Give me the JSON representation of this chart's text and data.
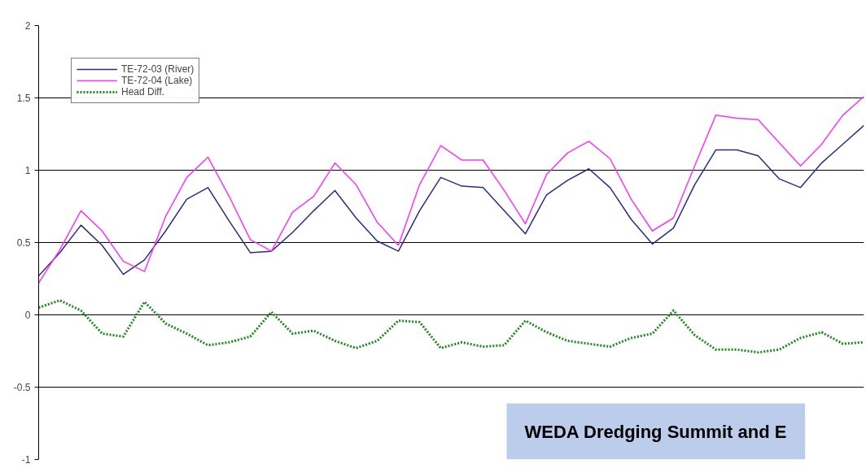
{
  "chart_data": {
    "type": "line",
    "categories": [
      null,
      null,
      null,
      null,
      null,
      null,
      null,
      null,
      null,
      null,
      null,
      null,
      null,
      null,
      null,
      null,
      null,
      null,
      null,
      null,
      null,
      null,
      null,
      null,
      null,
      null,
      null,
      null,
      null,
      null,
      null,
      null,
      null,
      null,
      null,
      null,
      null,
      null,
      null,
      null
    ],
    "series": [
      {
        "name": "TE-72-03 (River)",
        "color": "#2b2b84",
        "line_style": "solid",
        "values": [
          0.27,
          0.43,
          0.62,
          0.48,
          0.28,
          0.38,
          0.58,
          0.8,
          0.88,
          0.65,
          0.43,
          0.44,
          0.57,
          0.72,
          0.86,
          0.67,
          0.51,
          0.44,
          0.72,
          0.95,
          0.89,
          0.88,
          0.72,
          0.56,
          0.83,
          0.93,
          1.01,
          0.88,
          0.66,
          0.49,
          0.6,
          0.9,
          1.14,
          1.14,
          1.1,
          0.94,
          0.88,
          1.05,
          1.18,
          1.31
        ]
      },
      {
        "name": "TE-72-04 (Lake)",
        "color": "#ff33ff",
        "line_style": "solid",
        "values": [
          0.22,
          0.45,
          0.72,
          0.58,
          0.37,
          0.3,
          0.68,
          0.95,
          1.09,
          0.82,
          0.52,
          0.44,
          0.71,
          0.82,
          1.05,
          0.9,
          0.64,
          0.48,
          0.9,
          1.17,
          1.07,
          1.07,
          0.86,
          0.63,
          0.97,
          1.12,
          1.2,
          1.08,
          0.8,
          0.58,
          0.67,
          1.03,
          1.38,
          1.36,
          1.35,
          1.19,
          1.03,
          1.18,
          1.38,
          1.51
        ]
      },
      {
        "name": "Head Diff.",
        "color": "#1a8a1a",
        "line_style": "dotted",
        "values": [
          0.05,
          0.1,
          0.03,
          -0.13,
          -0.15,
          0.09,
          -0.06,
          -0.13,
          -0.21,
          -0.19,
          -0.15,
          0.02,
          -0.13,
          -0.11,
          -0.18,
          -0.23,
          -0.18,
          -0.04,
          -0.05,
          -0.23,
          -0.19,
          -0.22,
          -0.21,
          -0.04,
          -0.12,
          -0.18,
          -0.2,
          -0.22,
          -0.16,
          -0.13,
          0.03,
          -0.14,
          -0.24,
          -0.24,
          -0.26,
          -0.24,
          -0.16,
          -0.12,
          -0.2,
          -0.19
        ]
      }
    ],
    "ylim": [
      -1,
      2
    ],
    "yticks": [
      -1,
      -0.5,
      0,
      0.5,
      1,
      1.5,
      2
    ],
    "grid": "y",
    "legend": "top left",
    "tick_labels": "y",
    "annotations": [
      "WEDA Dredging Summit and E"
    ]
  }
}
